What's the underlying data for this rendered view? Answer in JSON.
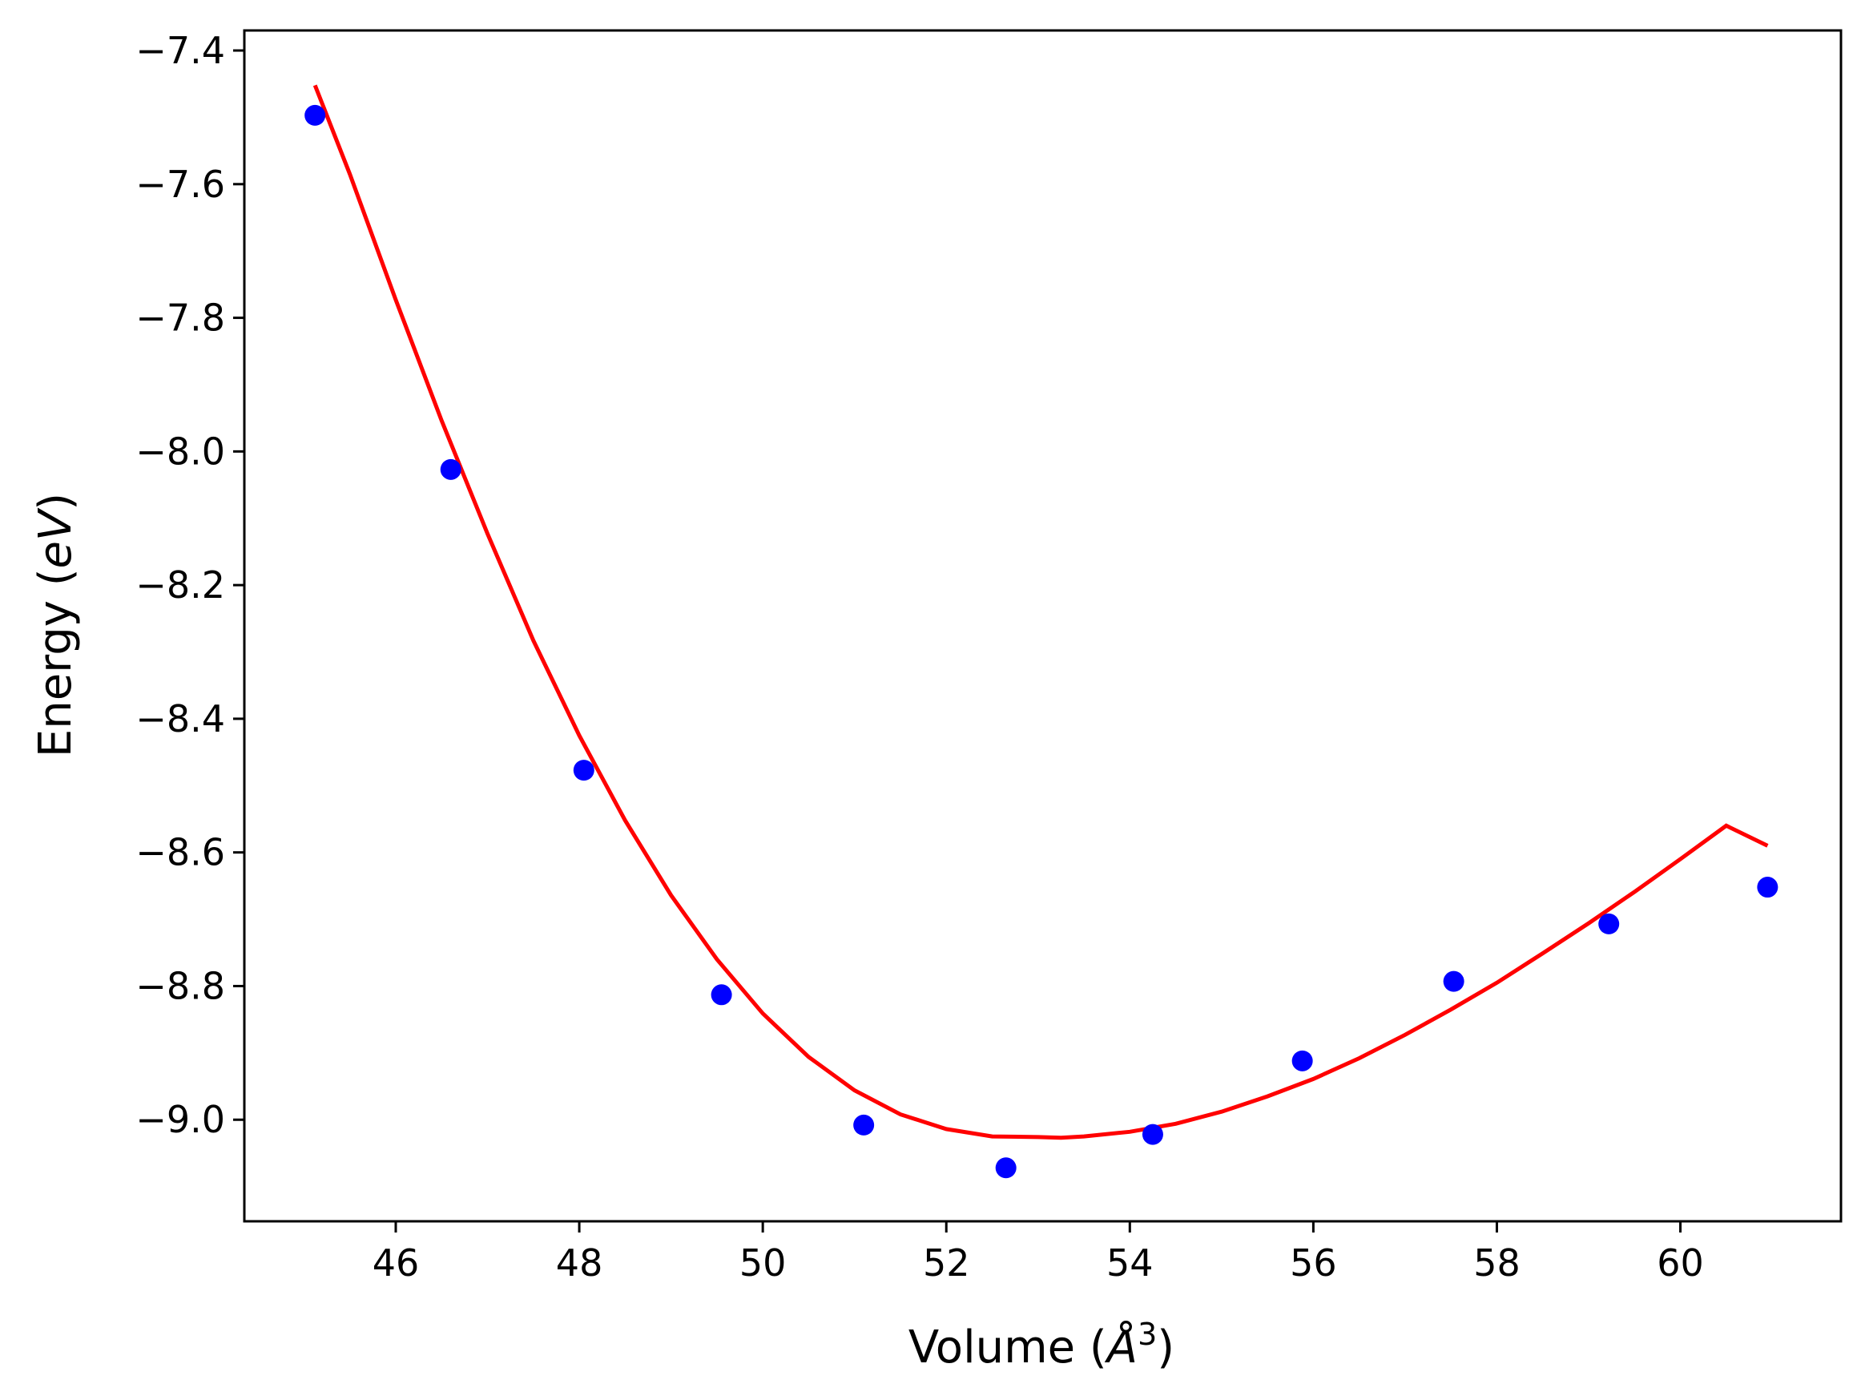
{
  "chart_data": {
    "type": "scatter",
    "title": "",
    "xlabel": {
      "prefix": "Volume (",
      "symbol": "Å",
      "sup": "3",
      "suffix": ")"
    },
    "ylabel": {
      "prefix": "Energy (",
      "italic": "eV",
      "suffix": ")"
    },
    "xlim": [
      44.35,
      61.75
    ],
    "ylim": [
      -9.152,
      -7.37
    ],
    "xticks": [
      46,
      48,
      50,
      52,
      54,
      56,
      58,
      60
    ],
    "yticks": [
      -7.4,
      -7.6,
      -7.8,
      -8.0,
      -8.2,
      -8.4,
      -8.6,
      -8.8,
      -9.0
    ],
    "grid": false,
    "series": [
      {
        "kind": "points",
        "color": "#0000ff",
        "x": [
          45.12,
          46.6,
          48.05,
          49.55,
          51.1,
          52.65,
          54.25,
          55.88,
          57.53,
          59.22,
          60.95
        ],
        "y": [
          -7.497,
          -8.027,
          -8.477,
          -8.813,
          -9.008,
          -9.072,
          -9.022,
          -8.912,
          -8.793,
          -8.707,
          -8.652
        ]
      },
      {
        "kind": "fit-line",
        "color": "#ff0000",
        "x": [
          45.12,
          45.5,
          46.0,
          46.5,
          47.0,
          47.5,
          48.0,
          48.5,
          49.0,
          49.5,
          50.0,
          50.5,
          51.0,
          51.5,
          52.0,
          52.5,
          53.0,
          53.25,
          53.5,
          54.0,
          54.5,
          55.0,
          55.5,
          56.0,
          56.5,
          57.0,
          57.5,
          58.0,
          58.5,
          59.0,
          59.5,
          60.0,
          60.5,
          60.95
        ],
        "y": [
          -7.452,
          -7.585,
          -7.773,
          -7.954,
          -8.123,
          -8.283,
          -8.425,
          -8.552,
          -8.664,
          -8.76,
          -8.841,
          -8.906,
          -8.956,
          -8.992,
          -9.014,
          -9.025,
          -9.026,
          -9.027,
          -9.025,
          -9.018,
          -9.006,
          -8.988,
          -8.965,
          -8.939,
          -8.908,
          -8.873,
          -8.835,
          -8.795,
          -8.751,
          -8.706,
          -8.659,
          -8.61,
          -8.56,
          -8.59
        ]
      }
    ]
  }
}
